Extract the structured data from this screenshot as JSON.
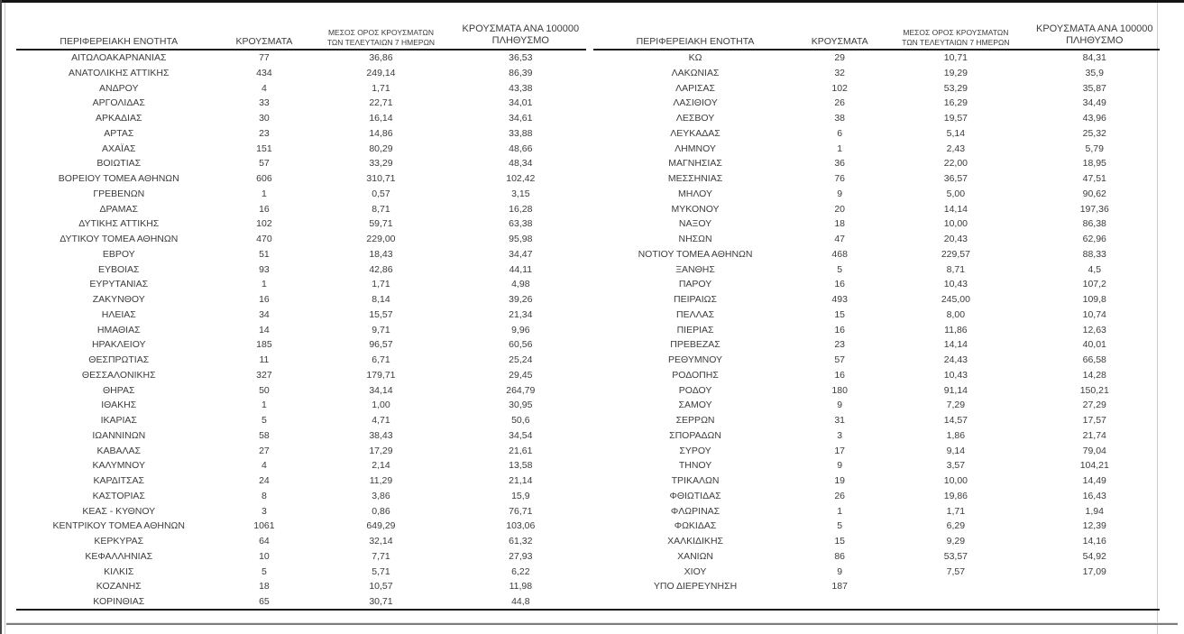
{
  "headers": {
    "region": "ΠΕΡΙΦΕΡΕΙΑΚΗ ΕΝΟΤΗΤΑ",
    "cases": "ΚΡΟΥΣΜΑΤΑ",
    "avg7_line1": "ΜΕΣΟΣ ΟΡΟΣ ΚΡΟΥΣΜΑΤΩΝ",
    "avg7_line2": "ΤΩΝ ΤΕΛΕΥΤΑΙΩΝ 7 ΗΜΕΡΩΝ",
    "per100k_line1": "ΚΡΟΥΣΜΑΤΑ ΑΝΑ 100000",
    "per100k_line2": "ΠΛΗΘΥΣΜΟ"
  },
  "colors": {
    "text": "#3c3c3c",
    "header_rule": "#1c1c1c",
    "footer_rule": "#7d7d7d"
  },
  "tables": [
    {
      "rows": [
        [
          "ΑΙΤΩΛΟΑΚΑΡΝΑΝΙΑΣ",
          "77",
          "36,86",
          "36,53"
        ],
        [
          "ΑΝΑΤΟΛΙΚΗΣ ΑΤΤΙΚΗΣ",
          "434",
          "249,14",
          "86,39"
        ],
        [
          "ΑΝΔΡΟΥ",
          "4",
          "1,71",
          "43,38"
        ],
        [
          "ΑΡΓΟΛΙΔΑΣ",
          "33",
          "22,71",
          "34,01"
        ],
        [
          "ΑΡΚΑΔΙΑΣ",
          "30",
          "16,14",
          "34,61"
        ],
        [
          "ΑΡΤΑΣ",
          "23",
          "14,86",
          "33,88"
        ],
        [
          "ΑΧΑΪΑΣ",
          "151",
          "80,29",
          "48,66"
        ],
        [
          "ΒΟΙΩΤΙΑΣ",
          "57",
          "33,29",
          "48,34"
        ],
        [
          "ΒΟΡΕΙΟΥ ΤΟΜΕΑ ΑΘΗΝΩΝ",
          "606",
          "310,71",
          "102,42"
        ],
        [
          "ΓΡΕΒΕΝΩΝ",
          "1",
          "0,57",
          "3,15"
        ],
        [
          "ΔΡΑΜΑΣ",
          "16",
          "8,71",
          "16,28"
        ],
        [
          "ΔΥΤΙΚΗΣ ΑΤΤΙΚΗΣ",
          "102",
          "59,71",
          "63,38"
        ],
        [
          "ΔΥΤΙΚΟΥ ΤΟΜΕΑ ΑΘΗΝΩΝ",
          "470",
          "229,00",
          "95,98"
        ],
        [
          "ΕΒΡΟΥ",
          "51",
          "18,43",
          "34,47"
        ],
        [
          "ΕΥΒΟΙΑΣ",
          "93",
          "42,86",
          "44,11"
        ],
        [
          "ΕΥΡΥΤΑΝΙΑΣ",
          "1",
          "1,71",
          "4,98"
        ],
        [
          "ΖΑΚΥΝΘΟΥ",
          "16",
          "8,14",
          "39,26"
        ],
        [
          "ΗΛΕΙΑΣ",
          "34",
          "15,57",
          "21,34"
        ],
        [
          "ΗΜΑΘΙΑΣ",
          "14",
          "9,71",
          "9,96"
        ],
        [
          "ΗΡΑΚΛΕΙΟΥ",
          "185",
          "96,57",
          "60,56"
        ],
        [
          "ΘΕΣΠΡΩΤΙΑΣ",
          "11",
          "6,71",
          "25,24"
        ],
        [
          "ΘΕΣΣΑΛΟΝΙΚΗΣ",
          "327",
          "179,71",
          "29,45"
        ],
        [
          "ΘΗΡΑΣ",
          "50",
          "34,14",
          "264,79"
        ],
        [
          "ΙΘΑΚΗΣ",
          "1",
          "1,00",
          "30,95"
        ],
        [
          "ΙΚΑΡΙΑΣ",
          "5",
          "4,71",
          "50,6"
        ],
        [
          "ΙΩΑΝΝΙΝΩΝ",
          "58",
          "38,43",
          "34,54"
        ],
        [
          "ΚΑΒΑΛΑΣ",
          "27",
          "17,29",
          "21,61"
        ],
        [
          "ΚΑΛΥΜΝΟΥ",
          "4",
          "2,14",
          "13,58"
        ],
        [
          "ΚΑΡΔΙΤΣΑΣ",
          "24",
          "11,29",
          "21,14"
        ],
        [
          "ΚΑΣΤΟΡΙΑΣ",
          "8",
          "3,86",
          "15,9"
        ],
        [
          "ΚΕΑΣ - ΚΥΘΝΟΥ",
          "3",
          "0,86",
          "76,71"
        ],
        [
          "ΚΕΝΤΡΙΚΟΥ ΤΟΜΕΑ ΑΘΗΝΩΝ",
          "1061",
          "649,29",
          "103,06"
        ],
        [
          "ΚΕΡΚΥΡΑΣ",
          "64",
          "32,14",
          "61,32"
        ],
        [
          "ΚΕΦΑΛΛΗΝΙΑΣ",
          "10",
          "7,71",
          "27,93"
        ],
        [
          "ΚΙΛΚΙΣ",
          "5",
          "5,71",
          "6,22"
        ],
        [
          "ΚΟΖΑΝΗΣ",
          "18",
          "10,57",
          "11,98"
        ],
        [
          "ΚΟΡΙΝΘΙΑΣ",
          "65",
          "30,71",
          "44,8"
        ]
      ]
    },
    {
      "rows": [
        [
          "ΚΩ",
          "29",
          "10,71",
          "84,31"
        ],
        [
          "ΛΑΚΩΝΙΑΣ",
          "32",
          "19,29",
          "35,9"
        ],
        [
          "ΛΑΡΙΣΑΣ",
          "102",
          "53,29",
          "35,87"
        ],
        [
          "ΛΑΣΙΘΙΟΥ",
          "26",
          "16,29",
          "34,49"
        ],
        [
          "ΛΕΣΒΟΥ",
          "38",
          "19,57",
          "43,96"
        ],
        [
          "ΛΕΥΚΑΔΑΣ",
          "6",
          "5,14",
          "25,32"
        ],
        [
          "ΛΗΜΝΟΥ",
          "1",
          "2,43",
          "5,79"
        ],
        [
          "ΜΑΓΝΗΣΙΑΣ",
          "36",
          "22,00",
          "18,95"
        ],
        [
          "ΜΕΣΣΗΝΙΑΣ",
          "76",
          "36,57",
          "47,51"
        ],
        [
          "ΜΗΛΟΥ",
          "9",
          "5,00",
          "90,62"
        ],
        [
          "ΜΥΚΟΝΟΥ",
          "20",
          "14,14",
          "197,36"
        ],
        [
          "ΝΑΞΟΥ",
          "18",
          "10,00",
          "86,38"
        ],
        [
          "ΝΗΣΩΝ",
          "47",
          "20,43",
          "62,96"
        ],
        [
          "ΝΟΤΙΟΥ ΤΟΜΕΑ ΑΘΗΝΩΝ",
          "468",
          "229,57",
          "88,33"
        ],
        [
          "ΞΑΝΘΗΣ",
          "5",
          "8,71",
          "4,5"
        ],
        [
          "ΠΑΡΟΥ",
          "16",
          "10,43",
          "107,2"
        ],
        [
          "ΠΕΙΡΑΙΩΣ",
          "493",
          "245,00",
          "109,8"
        ],
        [
          "ΠΕΛΛΑΣ",
          "15",
          "8,00",
          "10,74"
        ],
        [
          "ΠΙΕΡΙΑΣ",
          "16",
          "11,86",
          "12,63"
        ],
        [
          "ΠΡΕΒΕΖΑΣ",
          "23",
          "14,14",
          "40,01"
        ],
        [
          "ΡΕΘΥΜΝΟΥ",
          "57",
          "24,43",
          "66,58"
        ],
        [
          "ΡΟΔΟΠΗΣ",
          "16",
          "10,43",
          "14,28"
        ],
        [
          "ΡΟΔΟΥ",
          "180",
          "91,14",
          "150,21"
        ],
        [
          "ΣΑΜΟΥ",
          "9",
          "7,29",
          "27,29"
        ],
        [
          "ΣΕΡΡΩΝ",
          "31",
          "14,57",
          "17,57"
        ],
        [
          "ΣΠΟΡΑΔΩΝ",
          "3",
          "1,86",
          "21,74"
        ],
        [
          "ΣΥΡΟΥ",
          "17",
          "9,14",
          "79,04"
        ],
        [
          "ΤΗΝΟΥ",
          "9",
          "3,57",
          "104,21"
        ],
        [
          "ΤΡΙΚΑΛΩΝ",
          "19",
          "10,00",
          "14,49"
        ],
        [
          "ΦΘΙΩΤΙΔΑΣ",
          "26",
          "19,86",
          "16,43"
        ],
        [
          "ΦΛΩΡΙΝΑΣ",
          "1",
          "1,71",
          "1,94"
        ],
        [
          "ΦΩΚΙΔΑΣ",
          "5",
          "6,29",
          "12,39"
        ],
        [
          "ΧΑΛΚΙΔΙΚΗΣ",
          "15",
          "9,29",
          "14,16"
        ],
        [
          "ΧΑΝΙΩΝ",
          "86",
          "53,57",
          "54,92"
        ],
        [
          "ΧΙΟΥ",
          "9",
          "7,57",
          "17,09"
        ],
        [
          "ΥΠΟ ΔΙΕΡΕΥΝΗΣΗ",
          "187",
          "",
          ""
        ]
      ]
    }
  ]
}
